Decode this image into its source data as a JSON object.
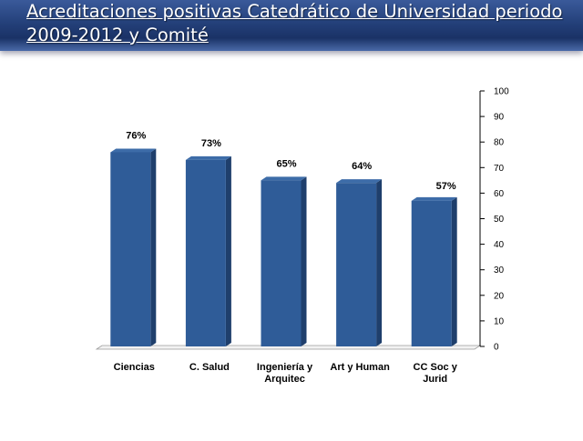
{
  "slide": {
    "title": "Acreditaciones positivas Catedrático de Universidad periodo 2009-2012 y Comité"
  },
  "colors": {
    "bar_front": "#2f5c98",
    "bar_side": "#1f3f6c",
    "bar_top": "#3d6ca8",
    "floor": "#f2f2f2",
    "banner": "#24407a"
  },
  "chart_data": {
    "type": "bar",
    "categories": [
      [
        "Ciencias"
      ],
      [
        "C. Salud"
      ],
      [
        "Ingeniería y",
        "Arquitec"
      ],
      [
        "Art y Human"
      ],
      [
        "CC Soc  y",
        "Jurid"
      ]
    ],
    "values": [
      76,
      73,
      65,
      64,
      57
    ],
    "data_labels": [
      "76%",
      "73%",
      "65%",
      "64%",
      "57%"
    ],
    "yticks": [
      0,
      10,
      20,
      30,
      40,
      50,
      60,
      70,
      80,
      90,
      100
    ],
    "ylim": [
      0,
      100
    ],
    "y_axis_side": "right",
    "grid": false,
    "legend": "none",
    "style": "3d-columns"
  }
}
